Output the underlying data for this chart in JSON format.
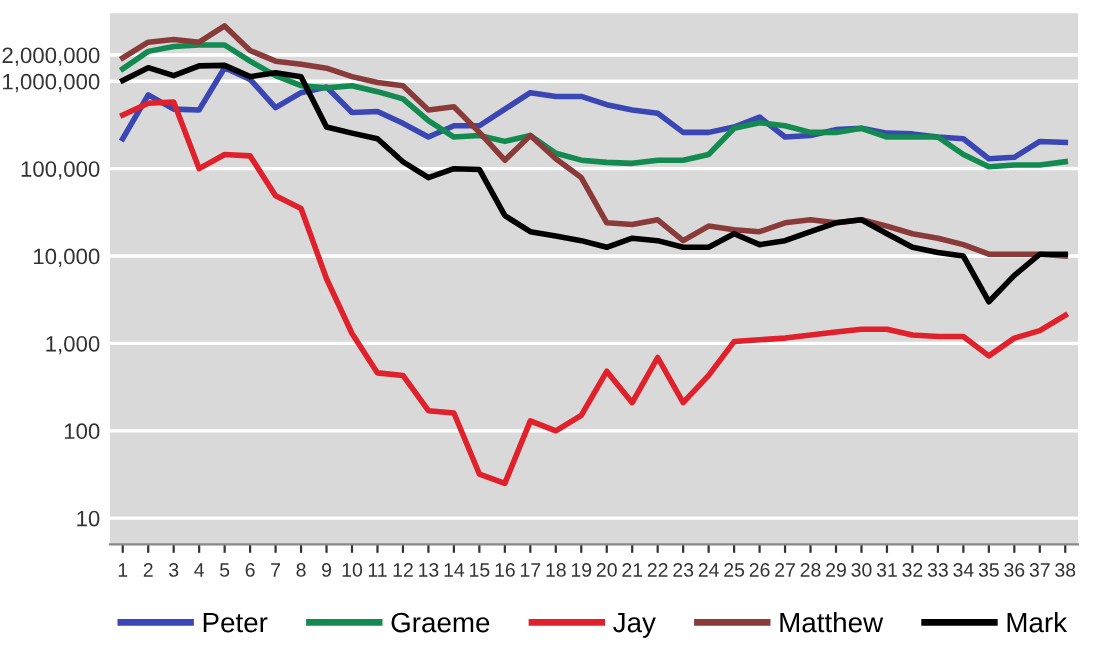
{
  "chart_data": {
    "type": "line",
    "categories": [
      "1",
      "2",
      "3",
      "4",
      "5",
      "6",
      "7",
      "8",
      "9",
      "10",
      "11",
      "12",
      "13",
      "14",
      "15",
      "16",
      "17",
      "18",
      "19",
      "20",
      "21",
      "22",
      "23",
      "24",
      "25",
      "26",
      "27",
      "28",
      "29",
      "30",
      "31",
      "32",
      "33",
      "34",
      "35",
      "36",
      "37",
      "38"
    ],
    "series": [
      {
        "name": "Peter",
        "color": "#3a46b4",
        "values": [
          220000,
          700000,
          480000,
          470000,
          1430000,
          1050000,
          500000,
          740000,
          860000,
          440000,
          450000,
          330000,
          230000,
          310000,
          310000,
          480000,
          740000,
          670000,
          670000,
          540000,
          470000,
          430000,
          260000,
          260000,
          300000,
          390000,
          230000,
          240000,
          280000,
          290000,
          255000,
          250000,
          230000,
          220000,
          130000,
          135000,
          205000,
          200000
        ]
      },
      {
        "name": "Graeme",
        "color": "#138a50",
        "values": [
          1390000,
          2200000,
          2500000,
          2600000,
          2600000,
          1700000,
          1160000,
          890000,
          840000,
          890000,
          760000,
          630000,
          355000,
          230000,
          240000,
          205000,
          240000,
          150000,
          125000,
          118000,
          115000,
          125000,
          125000,
          145000,
          290000,
          335000,
          310000,
          260000,
          260000,
          290000,
          230000,
          230000,
          230000,
          145000,
          105000,
          110000,
          110000,
          120000
        ]
      },
      {
        "name": "Jay",
        "color": "#e0202a",
        "values": [
          410000,
          560000,
          580000,
          100000,
          145000,
          140000,
          49000,
          35000,
          5500,
          1300,
          460,
          430,
          170,
          160,
          32,
          25,
          130,
          100,
          150,
          480,
          210,
          690,
          210,
          430,
          1050,
          1100,
          1150,
          1250,
          1350,
          1450,
          1450,
          1250,
          1200,
          1200,
          720,
          1150,
          1400,
          2100
        ]
      },
      {
        "name": "Matthew",
        "color": "#8b3a3a",
        "values": [
          1850000,
          2800000,
          3000000,
          2800000,
          4300000,
          2250000,
          1700000,
          1570000,
          1410000,
          1130000,
          970000,
          890000,
          470000,
          510000,
          260000,
          125000,
          240000,
          130000,
          79000,
          24000,
          23000,
          26000,
          15000,
          22000,
          20000,
          19000,
          24000,
          26000,
          24000,
          26000,
          22000,
          18000,
          16000,
          13500,
          10500,
          10500,
          10500,
          10000
        ]
      },
      {
        "name": "Mark",
        "color": "#000000",
        "values": [
          1020000,
          1430000,
          1160000,
          1500000,
          1520000,
          1130000,
          1250000,
          1130000,
          300000,
          255000,
          220000,
          120000,
          79000,
          100000,
          98000,
          29000,
          19000,
          17000,
          15000,
          12600,
          16000,
          15000,
          12600,
          12600,
          18000,
          13500,
          15000,
          19000,
          24000,
          26000,
          18000,
          12600,
          11000,
          10000,
          3000,
          6000,
          10500,
          10500
        ]
      }
    ],
    "log": "y",
    "ylim": [
      5,
      6000000
    ],
    "yticks": [
      10,
      100,
      {
        "value": 1000,
        "label": "1,000"
      },
      {
        "value": 10000,
        "label": "10,000"
      },
      {
        "value": 100000,
        "label": "100,000"
      },
      {
        "value": 1000000,
        "label": "1,000,000"
      },
      {
        "value": 2000000,
        "label": "2,000,000"
      }
    ],
    "grid": "y",
    "legend": "bottom",
    "marker": "none",
    "line_style": "solid"
  }
}
